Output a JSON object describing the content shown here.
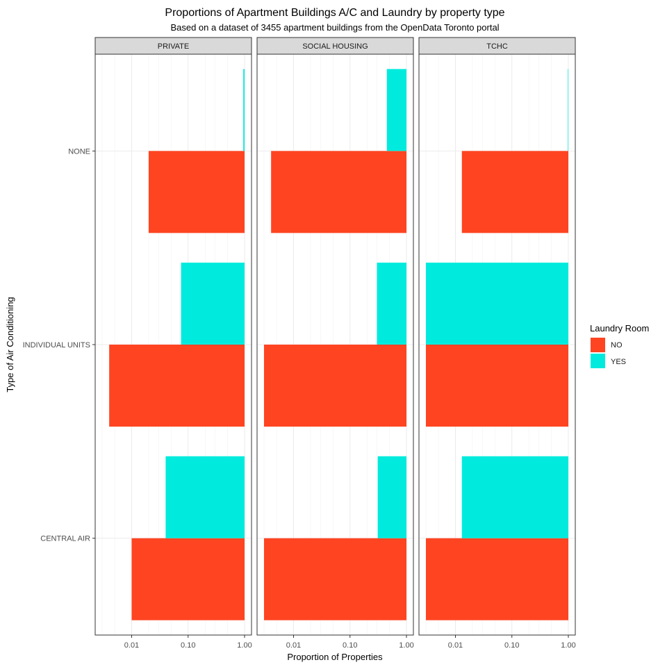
{
  "chart_data": {
    "type": "bar",
    "orientation": "horizontal",
    "title": "Proportions of Apartment Buildings A/C and Laundry by property type",
    "subtitle": "Based on a dataset of 3455 apartment buildings from the OpenData Toronto portal",
    "xlabel": "Proportion of Properties",
    "ylabel": "Type of Air Conditioning",
    "x_scale": "log10",
    "xlim": [
      0.003,
      1.0
    ],
    "x_ticks": [
      0.01,
      0.1,
      1.0
    ],
    "x_tick_labels": [
      "0.01",
      "0.10",
      "1.00"
    ],
    "categories": [
      "NONE",
      "INDIVIDUAL UNITS",
      "CENTRAL AIR"
    ],
    "grid": true,
    "legend": {
      "title": "Laundry Room",
      "position": "right",
      "entries": [
        {
          "label": "NO",
          "color": "#FF4422"
        },
        {
          "label": "YES",
          "color": "#00EBDD"
        }
      ]
    },
    "panels": [
      {
        "name": "PRIVATE",
        "series": [
          {
            "name": "NO",
            "values": [
              0.02,
              0.004,
              0.01
            ]
          },
          {
            "name": "YES",
            "values": [
              0.95,
              0.075,
              0.04
            ]
          }
        ]
      },
      {
        "name": "SOCIAL HOUSING",
        "series": [
          {
            "name": "NO",
            "values": [
              0.004,
              0.003,
              0.003
            ]
          },
          {
            "name": "YES",
            "values": [
              0.45,
              0.3,
              0.31
            ]
          }
        ]
      },
      {
        "name": "TCHC",
        "series": [
          {
            "name": "NO",
            "values": [
              0.013,
              0.003,
              0.003
            ]
          },
          {
            "name": "YES",
            "values": [
              0.98,
              0.003,
              0.013
            ]
          }
        ]
      }
    ]
  }
}
